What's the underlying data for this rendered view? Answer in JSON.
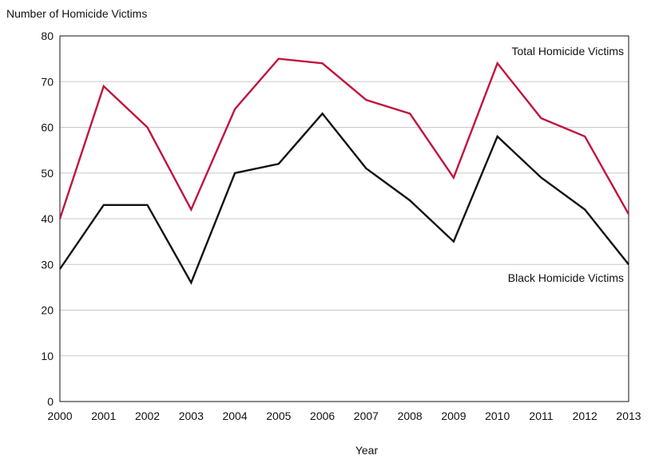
{
  "chart_data": {
    "type": "line",
    "title": "",
    "ylabel": "Number of Homicide Victims",
    "xlabel": "Year",
    "x": [
      2000,
      2001,
      2002,
      2003,
      2004,
      2005,
      2006,
      2007,
      2008,
      2009,
      2010,
      2011,
      2012,
      2013
    ],
    "ylim": [
      0,
      80
    ],
    "yticks": [
      0,
      10,
      20,
      30,
      40,
      50,
      60,
      70,
      80
    ],
    "grid": true,
    "series": [
      {
        "name": "Total Homicide Victims",
        "color": "#c0143c",
        "values": [
          40,
          69,
          60,
          42,
          64,
          75,
          74,
          66,
          63,
          49,
          74,
          62,
          58,
          41
        ]
      },
      {
        "name": "Black Homicide Victims",
        "color": "#111111",
        "values": [
          29,
          43,
          43,
          26,
          50,
          52,
          63,
          51,
          44,
          35,
          58,
          49,
          42,
          30
        ]
      }
    ]
  }
}
